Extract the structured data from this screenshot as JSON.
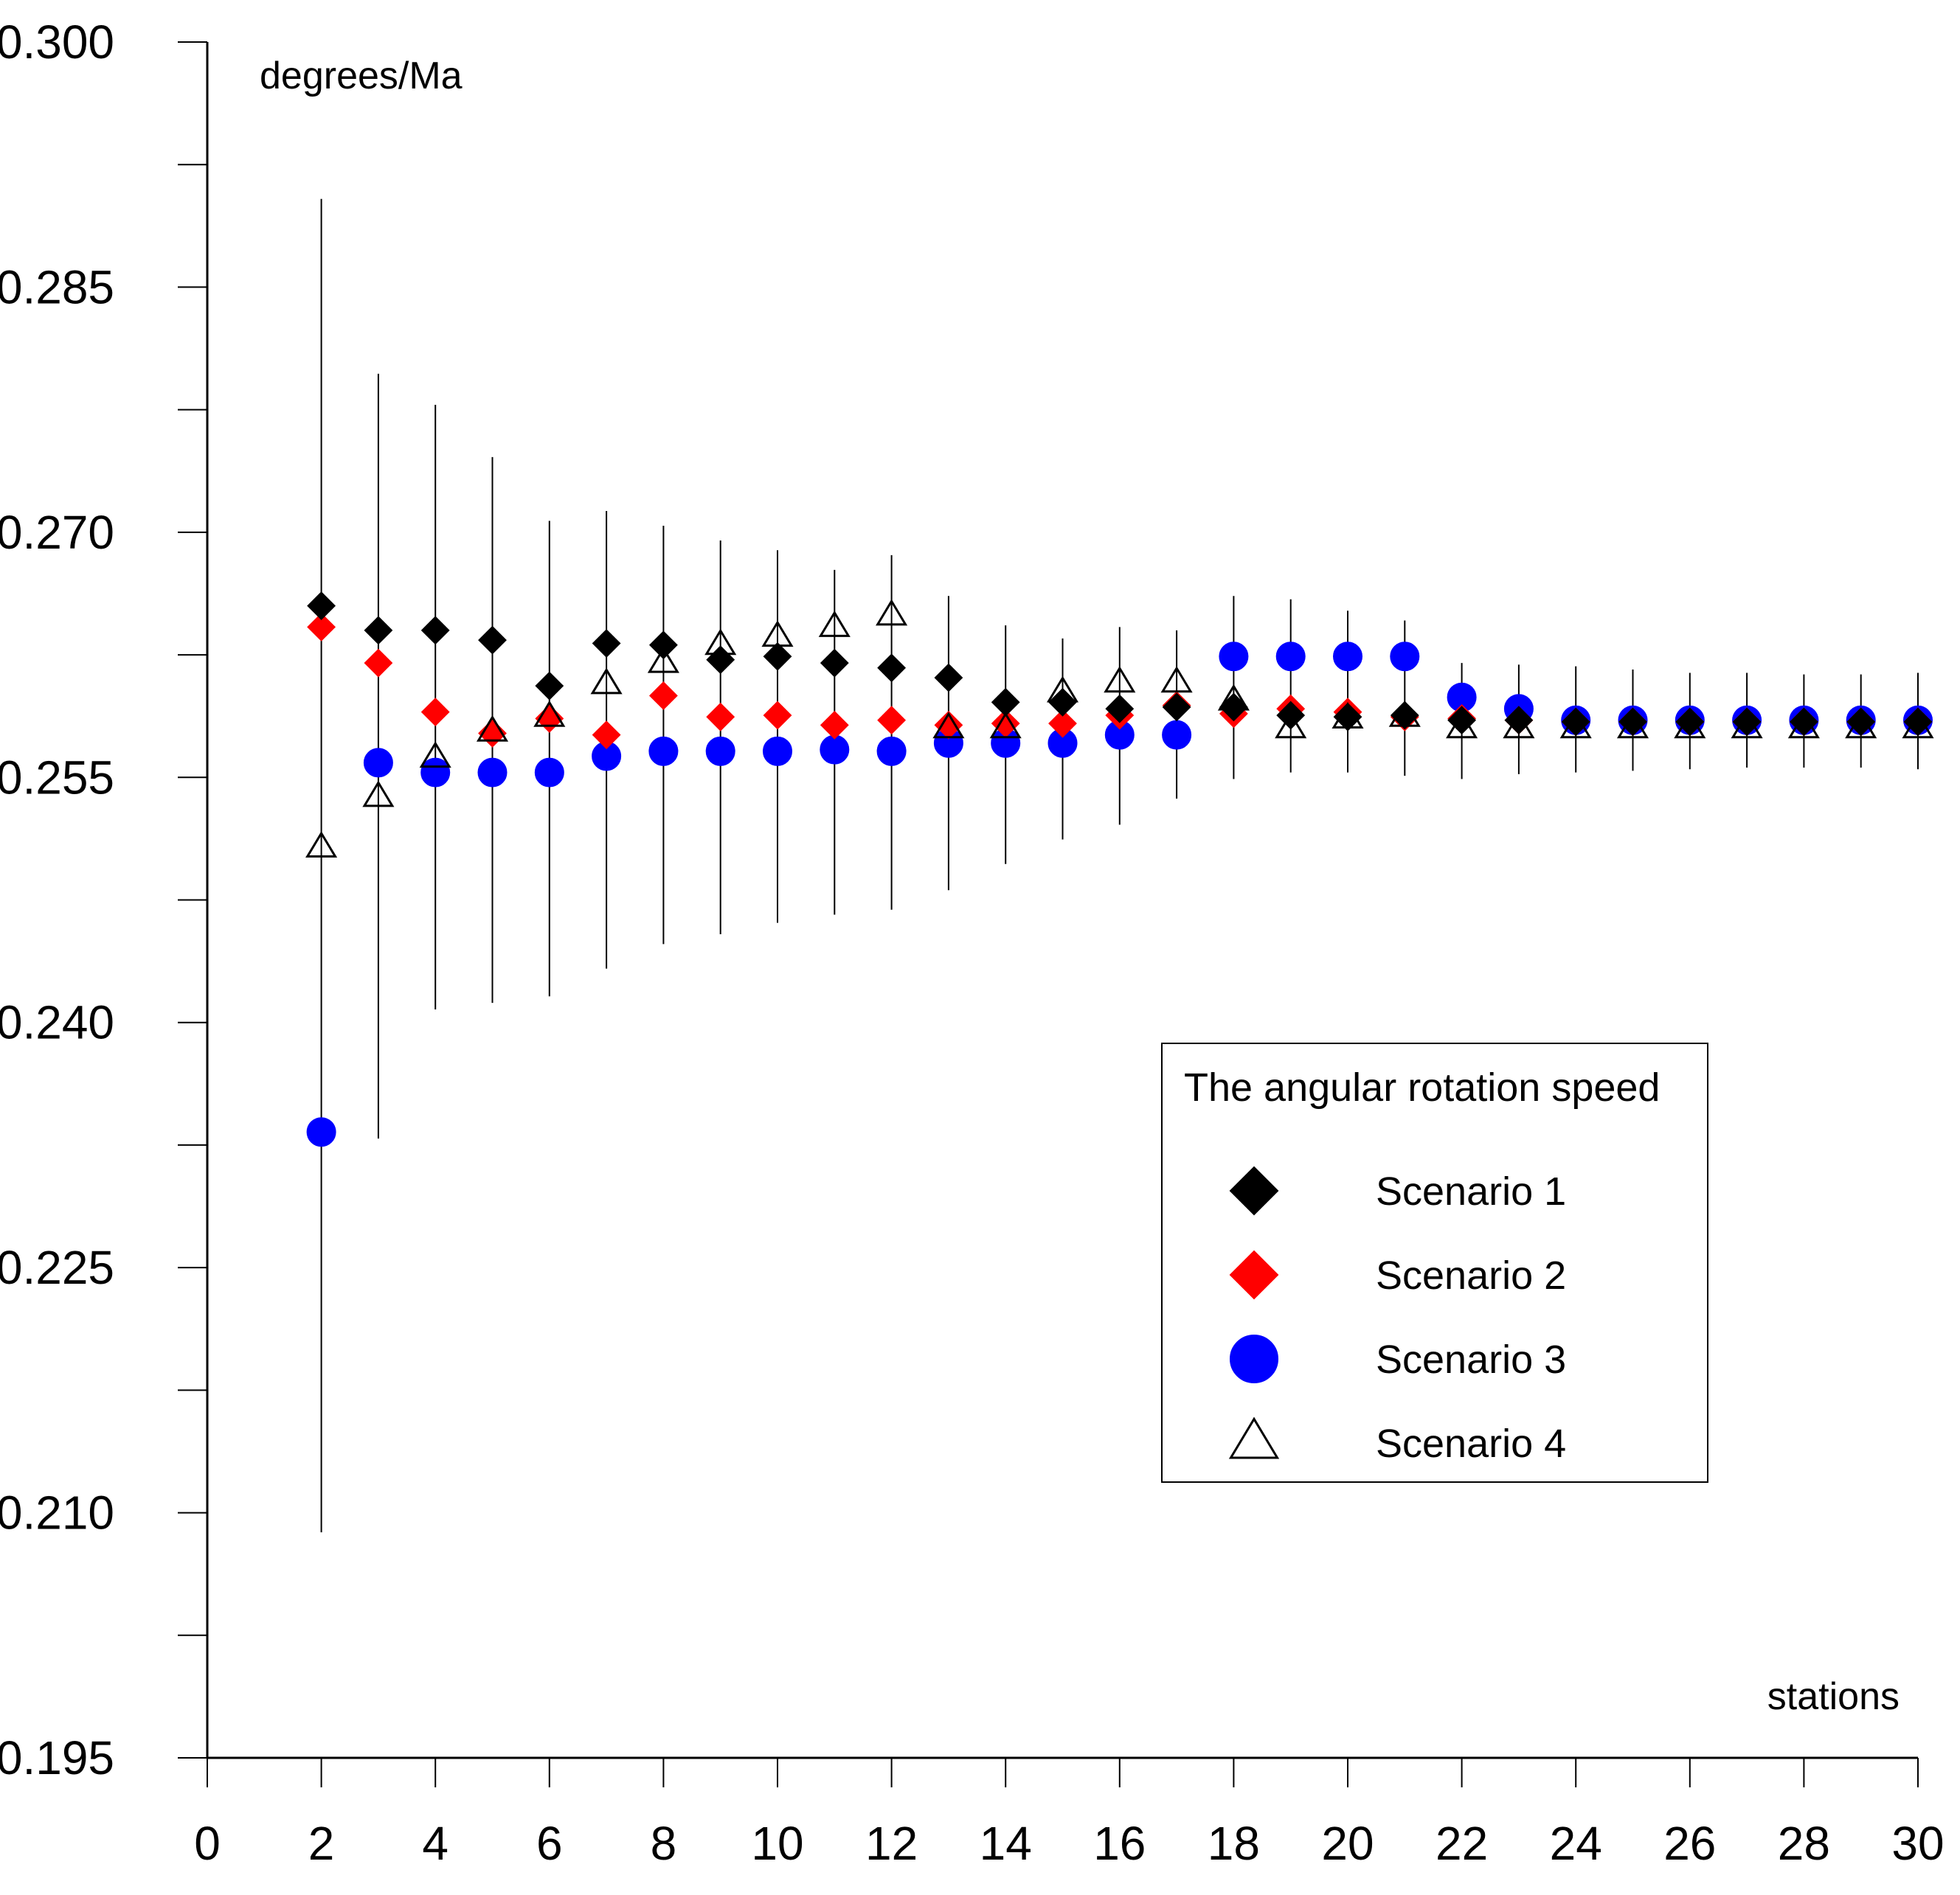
{
  "chart_data": {
    "type": "scatter",
    "title": "",
    "xlabel": "stations",
    "ylabel": "degrees/Ma",
    "xlim": [
      0,
      30
    ],
    "ylim": [
      0.195,
      0.3
    ],
    "xticks": [
      0,
      2,
      4,
      6,
      8,
      10,
      12,
      14,
      16,
      18,
      20,
      22,
      24,
      26,
      28,
      30
    ],
    "xtick_labels": [
      "0",
      "2",
      "4",
      "6",
      "8",
      "10",
      "12",
      "14",
      "16",
      "18",
      "20",
      "22",
      "24",
      "26",
      "28",
      "30"
    ],
    "yticks": [
      0.195,
      0.21,
      0.225,
      0.24,
      0.255,
      0.27,
      0.285,
      0.3
    ],
    "ytick_labels": [
      "0.195",
      "0.210",
      "0.225",
      "0.240",
      "0.255",
      "0.270",
      "0.285",
      "0.300"
    ],
    "yminor": [
      0.2025,
      0.2175,
      0.2325,
      0.2475,
      0.2625,
      0.2775,
      0.2925
    ],
    "grid": false,
    "legend": {
      "title": "The angular rotation speed",
      "position": "center-right"
    },
    "error_bars": [
      {
        "x": 2,
        "low": 0.2088,
        "high": 0.2904
      },
      {
        "x": 3,
        "low": 0.2329,
        "high": 0.2797
      },
      {
        "x": 4,
        "low": 0.2408,
        "high": 0.2778
      },
      {
        "x": 5,
        "low": 0.2412,
        "high": 0.2746
      },
      {
        "x": 6,
        "low": 0.2416,
        "high": 0.2707
      },
      {
        "x": 7,
        "low": 0.2433,
        "high": 0.2713
      },
      {
        "x": 8,
        "low": 0.2448,
        "high": 0.2704
      },
      {
        "x": 9,
        "low": 0.2454,
        "high": 0.2695
      },
      {
        "x": 10,
        "low": 0.2461,
        "high": 0.2689
      },
      {
        "x": 11,
        "low": 0.2466,
        "high": 0.2677
      },
      {
        "x": 12,
        "low": 0.2469,
        "high": 0.2686
      },
      {
        "x": 13,
        "low": 0.2481,
        "high": 0.2661
      },
      {
        "x": 14,
        "low": 0.2497,
        "high": 0.2643
      },
      {
        "x": 15,
        "low": 0.2512,
        "high": 0.2635
      },
      {
        "x": 16,
        "low": 0.2521,
        "high": 0.2642
      },
      {
        "x": 17,
        "low": 0.2537,
        "high": 0.264
      },
      {
        "x": 18,
        "low": 0.2549,
        "high": 0.2661
      },
      {
        "x": 19,
        "low": 0.2553,
        "high": 0.2659
      },
      {
        "x": 20,
        "low": 0.2553,
        "high": 0.2652
      },
      {
        "x": 21,
        "low": 0.2551,
        "high": 0.2646
      },
      {
        "x": 22,
        "low": 0.2549,
        "high": 0.262
      },
      {
        "x": 23,
        "low": 0.2552,
        "high": 0.2619
      },
      {
        "x": 24,
        "low": 0.2553,
        "high": 0.2618
      },
      {
        "x": 25,
        "low": 0.2554,
        "high": 0.2616
      },
      {
        "x": 26,
        "low": 0.2555,
        "high": 0.2614
      },
      {
        "x": 27,
        "low": 0.2556,
        "high": 0.2614
      },
      {
        "x": 28,
        "low": 0.2556,
        "high": 0.2613
      },
      {
        "x": 29,
        "low": 0.2556,
        "high": 0.2613
      },
      {
        "x": 30,
        "low": 0.2555,
        "high": 0.2614
      }
    ],
    "series": [
      {
        "name": "Scenario 1",
        "marker": "diamond",
        "filled": true,
        "color": "#000000",
        "x": [
          2,
          3,
          4,
          5,
          6,
          7,
          8,
          9,
          10,
          11,
          12,
          13,
          14,
          15,
          16,
          17,
          18,
          19,
          20,
          21,
          22,
          23,
          24,
          25,
          26,
          27,
          28,
          29,
          30
        ],
        "y": [
          0.2655,
          0.264,
          0.264,
          0.2634,
          0.2606,
          0.2632,
          0.2631,
          0.2622,
          0.2624,
          0.262,
          0.2617,
          0.2611,
          0.2596,
          0.2596,
          0.2592,
          0.2593,
          0.2593,
          0.2588,
          0.2587,
          0.2588,
          0.2585,
          0.2585,
          0.2584,
          0.2584,
          0.2584,
          0.2584,
          0.2584,
          0.2584,
          0.2584
        ]
      },
      {
        "name": "Scenario 2",
        "marker": "diamond",
        "filled": true,
        "color": "#ff0000",
        "x": [
          2,
          3,
          4,
          5,
          6,
          7,
          8,
          9,
          10,
          11,
          12,
          13,
          14,
          15,
          16,
          17,
          18,
          19,
          20,
          21,
          22,
          23,
          24,
          25,
          26,
          27,
          28,
          29,
          30
        ],
        "y": [
          0.2642,
          0.262,
          0.259,
          0.2577,
          0.2586,
          0.2576,
          0.26,
          0.2587,
          0.2588,
          0.2582,
          0.2585,
          0.2582,
          0.2583,
          0.2583,
          0.2588,
          0.2594,
          0.2589,
          0.2592,
          0.259,
          0.2587,
          0.2586,
          0.2585,
          0.2584,
          0.2584,
          0.2584,
          0.2584,
          0.2584,
          0.2584,
          0.2584
        ]
      },
      {
        "name": "Scenario 3",
        "marker": "circle",
        "filled": true,
        "color": "#0000ff",
        "x": [
          2,
          3,
          4,
          5,
          6,
          7,
          8,
          9,
          10,
          11,
          12,
          13,
          14,
          15,
          16,
          17,
          18,
          19,
          20,
          21,
          22,
          23,
          24,
          25,
          26,
          27,
          28,
          29,
          30
        ],
        "y": [
          0.2333,
          0.2559,
          0.2553,
          0.2553,
          0.2553,
          0.2563,
          0.2566,
          0.2566,
          0.2566,
          0.2567,
          0.2566,
          0.2571,
          0.2571,
          0.2571,
          0.2576,
          0.2576,
          0.2624,
          0.2624,
          0.2624,
          0.2624,
          0.2599,
          0.2592,
          0.2585,
          0.2585,
          0.2585,
          0.2585,
          0.2585,
          0.2585,
          0.2585
        ]
      },
      {
        "name": "Scenario 4",
        "marker": "triangle",
        "filled": false,
        "color": "#000000",
        "x": [
          2,
          3,
          4,
          5,
          6,
          7,
          8,
          9,
          10,
          11,
          12,
          13,
          14,
          15,
          16,
          17,
          18,
          19,
          20,
          21,
          22,
          23,
          24,
          25,
          26,
          27,
          28,
          29,
          30
        ],
        "y": [
          0.2507,
          0.2538,
          0.2562,
          0.2578,
          0.2587,
          0.2607,
          0.262,
          0.2631,
          0.2636,
          0.2642,
          0.2649,
          0.258,
          0.258,
          0.2602,
          0.2608,
          0.2608,
          0.2597,
          0.258,
          0.2586,
          0.2587,
          0.258,
          0.258,
          0.258,
          0.258,
          0.258,
          0.258,
          0.258,
          0.258,
          0.258
        ]
      }
    ]
  }
}
